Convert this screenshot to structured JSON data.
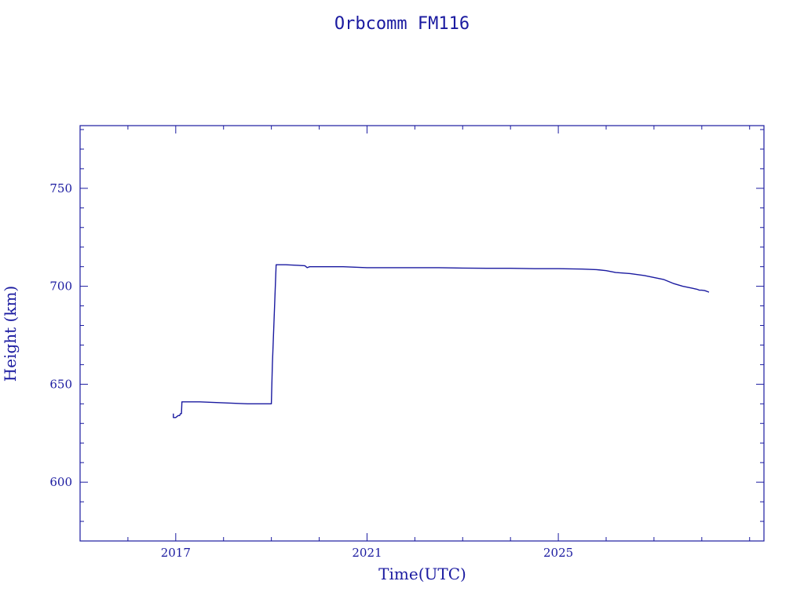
{
  "chart_data": {
    "type": "line",
    "title": "Orbcomm FM116",
    "xlabel": "Time(UTC)",
    "ylabel": "Height (km)",
    "xlim": [
      2015.0,
      2029.3
    ],
    "ylim": [
      570,
      782
    ],
    "x_ticks": [
      2017,
      2021,
      2025
    ],
    "y_ticks": [
      600,
      650,
      700,
      750
    ],
    "colors": {
      "axis": "#1a1aa0",
      "line": "#1a1aa0"
    },
    "series": [
      {
        "x": [
          2016.95,
          2016.95,
          2017.0,
          2017.05,
          2017.08,
          2017.1,
          2017.12,
          2017.13,
          2017.2,
          2017.5,
          2018.0,
          2018.5,
          2018.8,
          2019.0,
          2019.02,
          2019.1,
          2019.3,
          2019.7,
          2019.75,
          2019.8,
          2019.85,
          2020.0,
          2020.5,
          2021.0,
          2021.5,
          2022.0,
          2022.5,
          2023.0,
          2023.5,
          2024.0,
          2024.5,
          2025.0,
          2025.5,
          2025.8,
          2026.0,
          2026.2,
          2026.5,
          2026.8,
          2027.0,
          2027.2,
          2027.4,
          2027.6,
          2027.8,
          2027.9,
          2027.95,
          2028.0,
          2028.06,
          2028.1,
          2028.15
        ],
        "y": [
          635,
          633,
          633,
          634,
          634,
          635,
          635,
          641,
          641,
          641,
          640.5,
          640,
          640,
          640,
          660,
          711,
          711,
          710.5,
          709.5,
          710,
          710,
          710,
          710,
          709.5,
          709.5,
          709.5,
          709.5,
          709.3,
          709.2,
          709.2,
          709.0,
          709.0,
          708.8,
          708.5,
          708.0,
          707.0,
          706.5,
          705.5,
          704.5,
          703.5,
          701.5,
          700.0,
          699.0,
          698.5,
          698.0,
          698.0,
          697.8,
          697.5,
          697.0
        ]
      }
    ]
  }
}
